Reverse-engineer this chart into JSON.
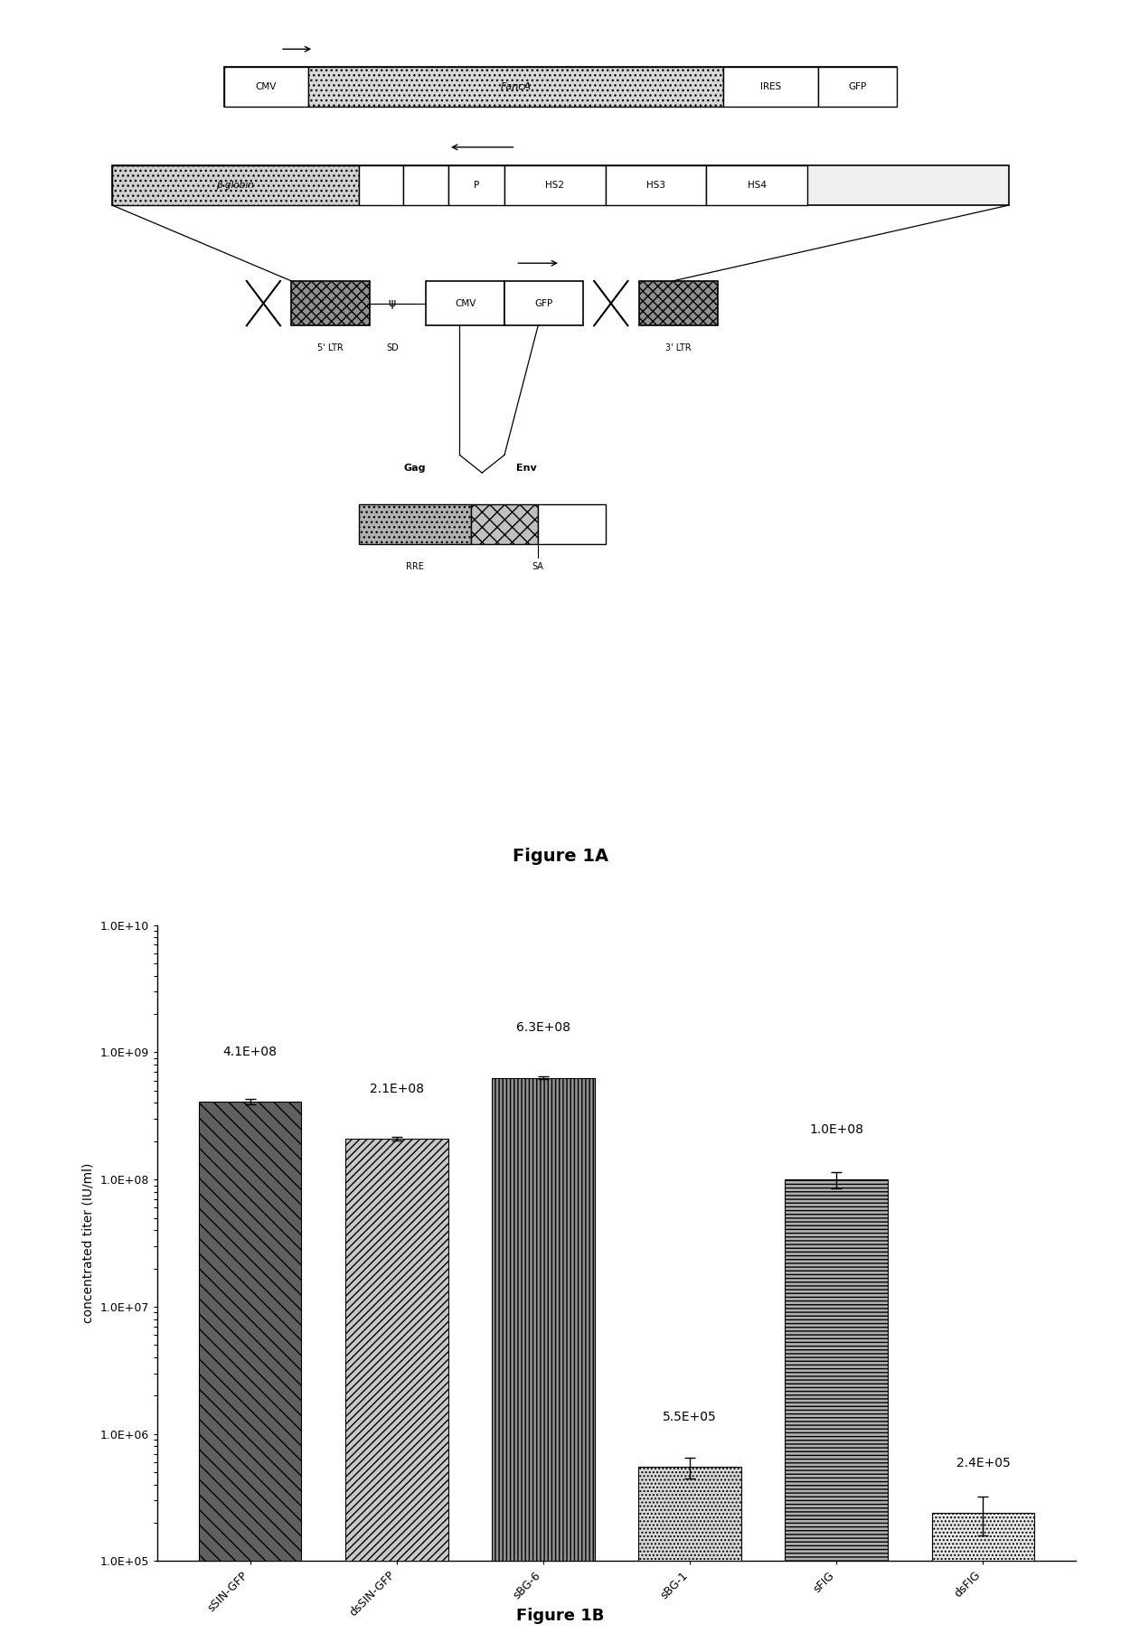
{
  "fig_title_a": "Figure 1A",
  "fig_title_b": "Figure 1B",
  "bar_categories": [
    "sSIN-GFP",
    "dsSIN-GFP",
    "sBG-6",
    "sBG-1",
    "sFIG",
    "dsFIG"
  ],
  "bar_values": [
    410000000.0,
    210000000.0,
    630000000.0,
    550000.0,
    100000000.0,
    240000.0
  ],
  "bar_errors": [
    20000000.0,
    8000000.0,
    15000000.0,
    100000.0,
    15000000.0,
    80000.0
  ],
  "bar_labels": [
    "4.1E+08",
    "2.1E+08",
    "6.3E+08",
    "5.5E+05",
    "1.0E+08",
    "2.4E+05"
  ],
  "ylabel": "concentrated titer (IU/ml)",
  "yticks": [
    100000.0,
    1000000.0,
    10000000.0,
    100000000.0,
    1000000000.0,
    10000000000.0
  ],
  "ytick_labels": [
    "1.0E+05",
    "1.0E+06",
    "1.0E+07",
    "1.0E+08",
    "1.0E+09",
    "1.0E+10"
  ],
  "bg_color": "#ffffff",
  "label_fontsize": 10,
  "tick_fontsize": 9,
  "figure_label_fontsize": 13
}
